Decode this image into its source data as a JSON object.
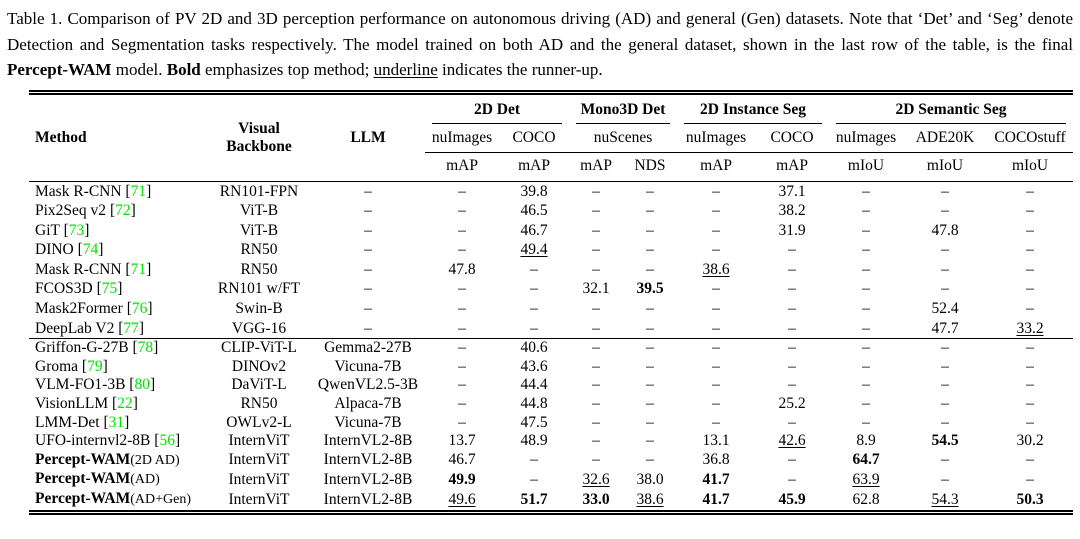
{
  "caption": {
    "lead": "Table 1. Comparison of PV 2D and 3D perception performance on autonomous driving (AD) and general (Gen) datasets. Note that ‘Det’ and ‘Seg’ denote Detection and Segmentation tasks respectively. The model trained on both AD and the general dataset, shown in the last row of the table, is the final ",
    "bold_model": "Percept-WAM",
    "mid1": " model. ",
    "bold_word": "Bold",
    "mid2": " emphasizes top method; ",
    "underline_word": "underline",
    "tail": " indicates the runner-up."
  },
  "colors": {
    "citation_green": "#00E400"
  },
  "table": {
    "header": {
      "method_label": "Method",
      "backbone_line1": "Visual",
      "backbone_line2": "Backbone",
      "llm_label": "LLM",
      "groups": [
        {
          "label": "2D Det"
        },
        {
          "label": "Mono3D Det"
        },
        {
          "label": "2D Instance Seg"
        },
        {
          "label": "2D Semantic Seg"
        }
      ],
      "datasets": [
        {
          "name": "nuImages",
          "span": 1
        },
        {
          "name": "COCO",
          "span": 1
        },
        {
          "name": "nuScenes",
          "span": 2
        },
        {
          "name": "nuImages",
          "span": 1
        },
        {
          "name": "COCO",
          "span": 1
        },
        {
          "name": "nuImages",
          "span": 1
        },
        {
          "name": "ADE20K",
          "span": 1
        },
        {
          "name": "COCOstuff",
          "span": 1
        }
      ],
      "metrics": [
        "mAP",
        "mAP",
        "mAP",
        "NDS",
        "mAP",
        "mAP",
        "mIoU",
        "mIoU",
        "mIoU"
      ]
    },
    "groups": [
      {
        "rows": [
          {
            "method": {
              "name": "Mask R-CNN",
              "cite": "71"
            },
            "backbone": "RN101-FPN",
            "llm": "–",
            "vals": [
              "–",
              "39.8",
              "–",
              "–",
              "–",
              "37.1",
              "–",
              "–",
              "–"
            ]
          },
          {
            "method": {
              "name": "Pix2Seq v2",
              "cite": "72"
            },
            "backbone": "ViT-B",
            "llm": "–",
            "vals": [
              "–",
              "46.5",
              "–",
              "–",
              "–",
              "38.2",
              "–",
              "–",
              "–"
            ]
          },
          {
            "method": {
              "name": "GiT",
              "cite": "73"
            },
            "backbone": "ViT-B",
            "llm": "–",
            "vals": [
              "–",
              "46.7",
              "–",
              "–",
              "–",
              "31.9",
              "–",
              "47.8",
              "–"
            ]
          },
          {
            "method": {
              "name": "DINO",
              "cite": "74"
            },
            "backbone": "RN50",
            "llm": "–",
            "vals": [
              "–",
              {
                "v": "49.4",
                "s": "u"
              },
              "–",
              "–",
              "–",
              "–",
              "–",
              "–",
              "–"
            ]
          },
          {
            "method": {
              "name": "Mask R-CNN",
              "cite": "71"
            },
            "backbone": "RN50",
            "llm": "–",
            "vals": [
              "47.8",
              "–",
              "–",
              "–",
              {
                "v": "38.6",
                "s": "u"
              },
              "–",
              "–",
              "–",
              "–"
            ]
          },
          {
            "method": {
              "name": "FCOS3D",
              "cite": "75"
            },
            "backbone": "RN101 w/FT",
            "llm": "–",
            "vals": [
              "–",
              "–",
              "32.1",
              {
                "v": "39.5",
                "s": "b"
              },
              "–",
              "–",
              "–",
              "–",
              "–"
            ]
          },
          {
            "method": {
              "name": "Mask2Former",
              "cite": "76"
            },
            "backbone": "Swin-B",
            "llm": "–",
            "vals": [
              "–",
              "–",
              "–",
              "–",
              "–",
              "–",
              "–",
              "52.4",
              "–"
            ]
          },
          {
            "method": {
              "name": "DeepLab V2",
              "cite": "77"
            },
            "backbone": "VGG-16",
            "llm": "–",
            "vals": [
              "–",
              "–",
              "–",
              "–",
              "–",
              "–",
              "–",
              "47.7",
              {
                "v": "33.2",
                "s": "u"
              }
            ]
          }
        ]
      },
      {
        "rows": [
          {
            "method": {
              "name": "Griffon-G-27B",
              "cite": "78"
            },
            "backbone": "CLIP-ViT-L",
            "llm": "Gemma2-27B",
            "vals": [
              "–",
              "40.6",
              "–",
              "–",
              "–",
              "–",
              "–",
              "–",
              "–"
            ]
          },
          {
            "method": {
              "name": "Groma",
              "cite": "79"
            },
            "backbone": "DINOv2",
            "llm": "Vicuna-7B",
            "vals": [
              "–",
              "43.6",
              "–",
              "–",
              "–",
              "–",
              "–",
              "–",
              "–"
            ]
          },
          {
            "method": {
              "name": "VLM-FO1-3B",
              "cite": "80"
            },
            "backbone": "DaViT-L",
            "llm": "QwenVL2.5-3B",
            "vals": [
              "–",
              "44.4",
              "–",
              "–",
              "–",
              "–",
              "–",
              "–",
              "–"
            ]
          },
          {
            "method": {
              "name": "VisionLLM",
              "cite": "22"
            },
            "backbone": "RN50",
            "llm": "Alpaca-7B",
            "vals": [
              "–",
              "44.8",
              "–",
              "–",
              "–",
              "25.2",
              "–",
              "–",
              "–"
            ]
          },
          {
            "method": {
              "name": "LMM-Det",
              "cite": "31"
            },
            "backbone": "OWLv2-L",
            "llm": "Vicuna-7B",
            "vals": [
              "–",
              "47.5",
              "–",
              "–",
              "–",
              "–",
              "–",
              "–",
              "–"
            ]
          },
          {
            "method": {
              "name": "UFO-internvl2-8B",
              "cite": "56"
            },
            "backbone": "InternViT",
            "llm": "InternVL2-8B",
            "vals": [
              "13.7",
              "48.9",
              "–",
              "–",
              "13.1",
              {
                "v": "42.6",
                "s": "u"
              },
              "8.9",
              {
                "v": "54.5",
                "s": "b"
              },
              "30.2"
            ]
          },
          {
            "method": {
              "name": "Percept-WAM",
              "bold": true,
              "suffix": "(2D AD)"
            },
            "backbone": "InternViT",
            "llm": "InternVL2-8B",
            "vals": [
              "46.7",
              "–",
              "–",
              "–",
              "36.8",
              "–",
              {
                "v": "64.7",
                "s": "b"
              },
              "–",
              "–"
            ]
          },
          {
            "method": {
              "name": "Percept-WAM",
              "bold": true,
              "suffix": "(AD)"
            },
            "backbone": "InternViT",
            "llm": "InternVL2-8B",
            "vals": [
              {
                "v": "49.9",
                "s": "b"
              },
              "–",
              {
                "v": "32.6",
                "s": "u"
              },
              "38.0",
              {
                "v": "41.7",
                "s": "b"
              },
              "–",
              {
                "v": "63.9",
                "s": "u"
              },
              "–",
              "–"
            ]
          },
          {
            "method": {
              "name": "Percept-WAM",
              "bold": true,
              "suffix": "(AD+Gen)"
            },
            "backbone": "InternViT",
            "llm": "InternVL2-8B",
            "vals": [
              {
                "v": "49.6",
                "s": "u"
              },
              {
                "v": "51.7",
                "s": "b"
              },
              {
                "v": "33.0",
                "s": "b"
              },
              {
                "v": "38.6",
                "s": "u"
              },
              {
                "v": "41.7",
                "s": "b"
              },
              {
                "v": "45.9",
                "s": "b"
              },
              "62.8",
              {
                "v": "54.3",
                "s": "u"
              },
              {
                "v": "50.3",
                "s": "b"
              }
            ]
          }
        ]
      }
    ]
  }
}
